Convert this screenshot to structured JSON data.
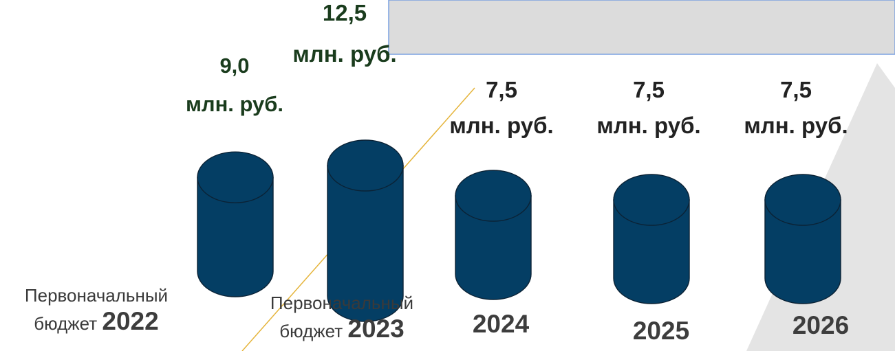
{
  "chart_data": {
    "type": "bar",
    "style": "3d-cylinder",
    "unit": "млн. руб.",
    "categories": [
      {
        "pre": "Первоначальный",
        "small": "бюджет",
        "year": "2022"
      },
      {
        "pre": "Первоначальный",
        "small": "бюджет",
        "year": "2023"
      },
      {
        "pre": "",
        "small": "",
        "year": "2024"
      },
      {
        "pre": "",
        "small": "",
        "year": "2025"
      },
      {
        "pre": "",
        "small": "",
        "year": "2026"
      }
    ],
    "values": [
      9.0,
      12.5,
      7.5,
      7.5,
      7.5
    ],
    "value_labels": [
      "9,0",
      "12,5",
      "7,5",
      "7,5",
      "7,5"
    ],
    "label_colors": [
      "#1a3c1d",
      "#1a3c1d",
      "#222222",
      "#222222",
      "#222222"
    ],
    "bar_color": "#043e64",
    "title": "",
    "xlabel": "",
    "ylabel": ""
  }
}
